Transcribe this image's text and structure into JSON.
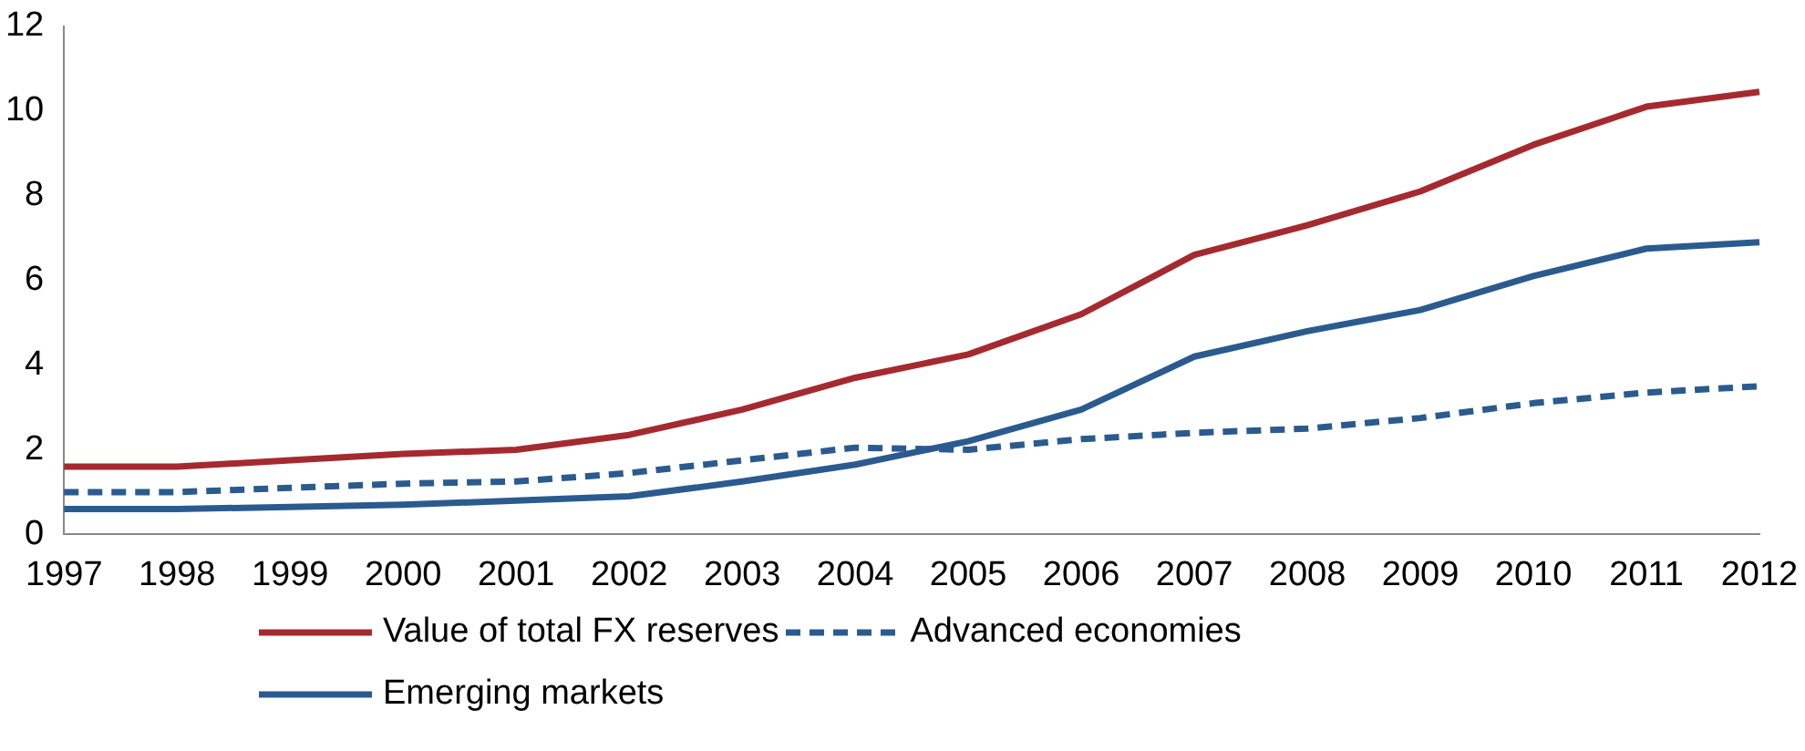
{
  "chart_data": {
    "type": "line",
    "categories": [
      "1997",
      "1998",
      "1999",
      "2000",
      "2001",
      "2002",
      "2003",
      "2004",
      "2005",
      "2006",
      "2007",
      "2008",
      "2009",
      "2010",
      "2011",
      "2012"
    ],
    "series": [
      {
        "name": "Value of total FX reserves",
        "color": "#a52a2f",
        "line_style": "solid",
        "values": [
          1.6,
          1.6,
          1.75,
          1.9,
          2.0,
          2.35,
          2.95,
          3.7,
          4.25,
          5.2,
          6.6,
          7.3,
          8.1,
          9.2,
          10.1,
          10.45
        ]
      },
      {
        "name": "Advanced economies",
        "color": "#2b5b8e",
        "line_style": "dashed",
        "values": [
          1.0,
          1.0,
          1.1,
          1.2,
          1.25,
          1.45,
          1.75,
          2.05,
          2.0,
          2.25,
          2.4,
          2.5,
          2.75,
          3.1,
          3.35,
          3.5
        ]
      },
      {
        "name": "Emerging markets",
        "color": "#2b5b8e",
        "line_style": "solid",
        "values": [
          0.6,
          0.6,
          0.65,
          0.7,
          0.8,
          0.9,
          1.25,
          1.65,
          2.2,
          2.95,
          4.2,
          4.8,
          5.3,
          6.1,
          6.75,
          6.9
        ]
      }
    ],
    "ylim": [
      0,
      12
    ],
    "yticks": [
      0,
      2,
      4,
      6,
      8,
      10,
      12
    ],
    "grid": false,
    "legend": "bottom",
    "marker": "none"
  }
}
